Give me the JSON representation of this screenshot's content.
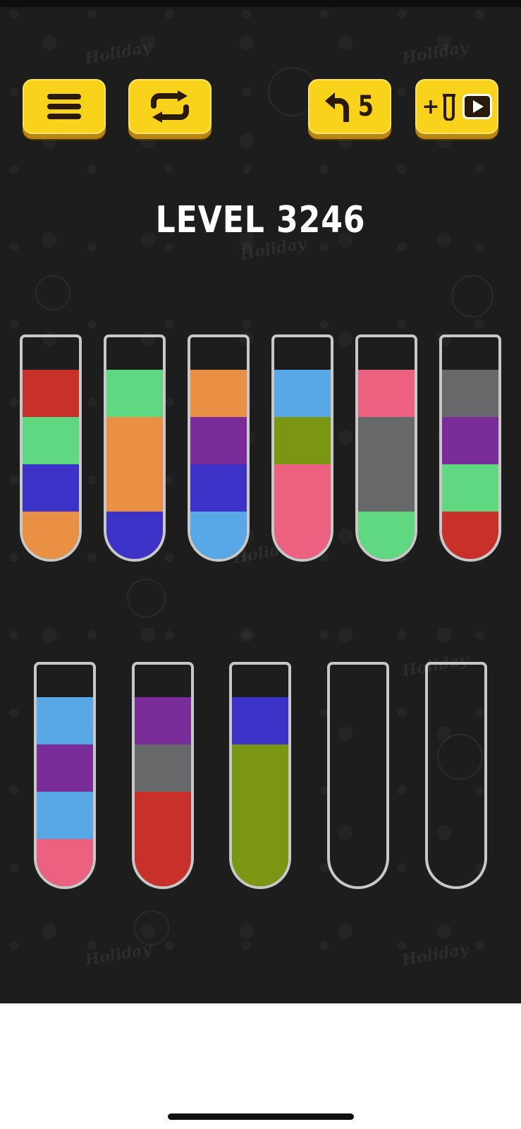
{
  "level": {
    "label": "LEVEL 3246"
  },
  "toolbar": {
    "menu": {
      "icon": "menu-icon"
    },
    "restart": {
      "icon": "restart-icon"
    },
    "undo": {
      "icon": "undo-icon",
      "count": "5"
    },
    "add_tube": {
      "icon": "add-tube-video-icon",
      "prefix": "+"
    }
  },
  "colors": {
    "red": "#c8302a",
    "green": "#60d882",
    "blue": "#3d32c8",
    "orange": "#ea9044",
    "purple": "#7a2d99",
    "light_blue": "#58a8e8",
    "olive": "#7a9612",
    "pink": "#ec6080",
    "gray": "#67686a",
    "button_yellow": "#f8d21b",
    "background": "#1d1d1d"
  },
  "tubes": [
    {
      "id": 1,
      "layers_bottom_to_top": [
        "orange",
        "blue",
        "green",
        "red"
      ]
    },
    {
      "id": 2,
      "layers_bottom_to_top": [
        "blue",
        "orange",
        "orange",
        "green"
      ]
    },
    {
      "id": 3,
      "layers_bottom_to_top": [
        "light_blue",
        "blue",
        "purple",
        "orange"
      ]
    },
    {
      "id": 4,
      "layers_bottom_to_top": [
        "pink",
        "pink",
        "olive",
        "light_blue"
      ]
    },
    {
      "id": 5,
      "layers_bottom_to_top": [
        "green",
        "gray",
        "gray",
        "pink"
      ]
    },
    {
      "id": 6,
      "layers_bottom_to_top": [
        "red",
        "green",
        "purple",
        "gray"
      ]
    },
    {
      "id": 7,
      "layers_bottom_to_top": [
        "pink",
        "light_blue",
        "purple",
        "light_blue"
      ]
    },
    {
      "id": 8,
      "layers_bottom_to_top": [
        "red",
        "red",
        "gray",
        "purple"
      ]
    },
    {
      "id": 9,
      "layers_bottom_to_top": [
        "olive",
        "olive",
        "olive",
        "blue"
      ]
    },
    {
      "id": 10,
      "layers_bottom_to_top": []
    },
    {
      "id": 11,
      "layers_bottom_to_top": []
    }
  ]
}
